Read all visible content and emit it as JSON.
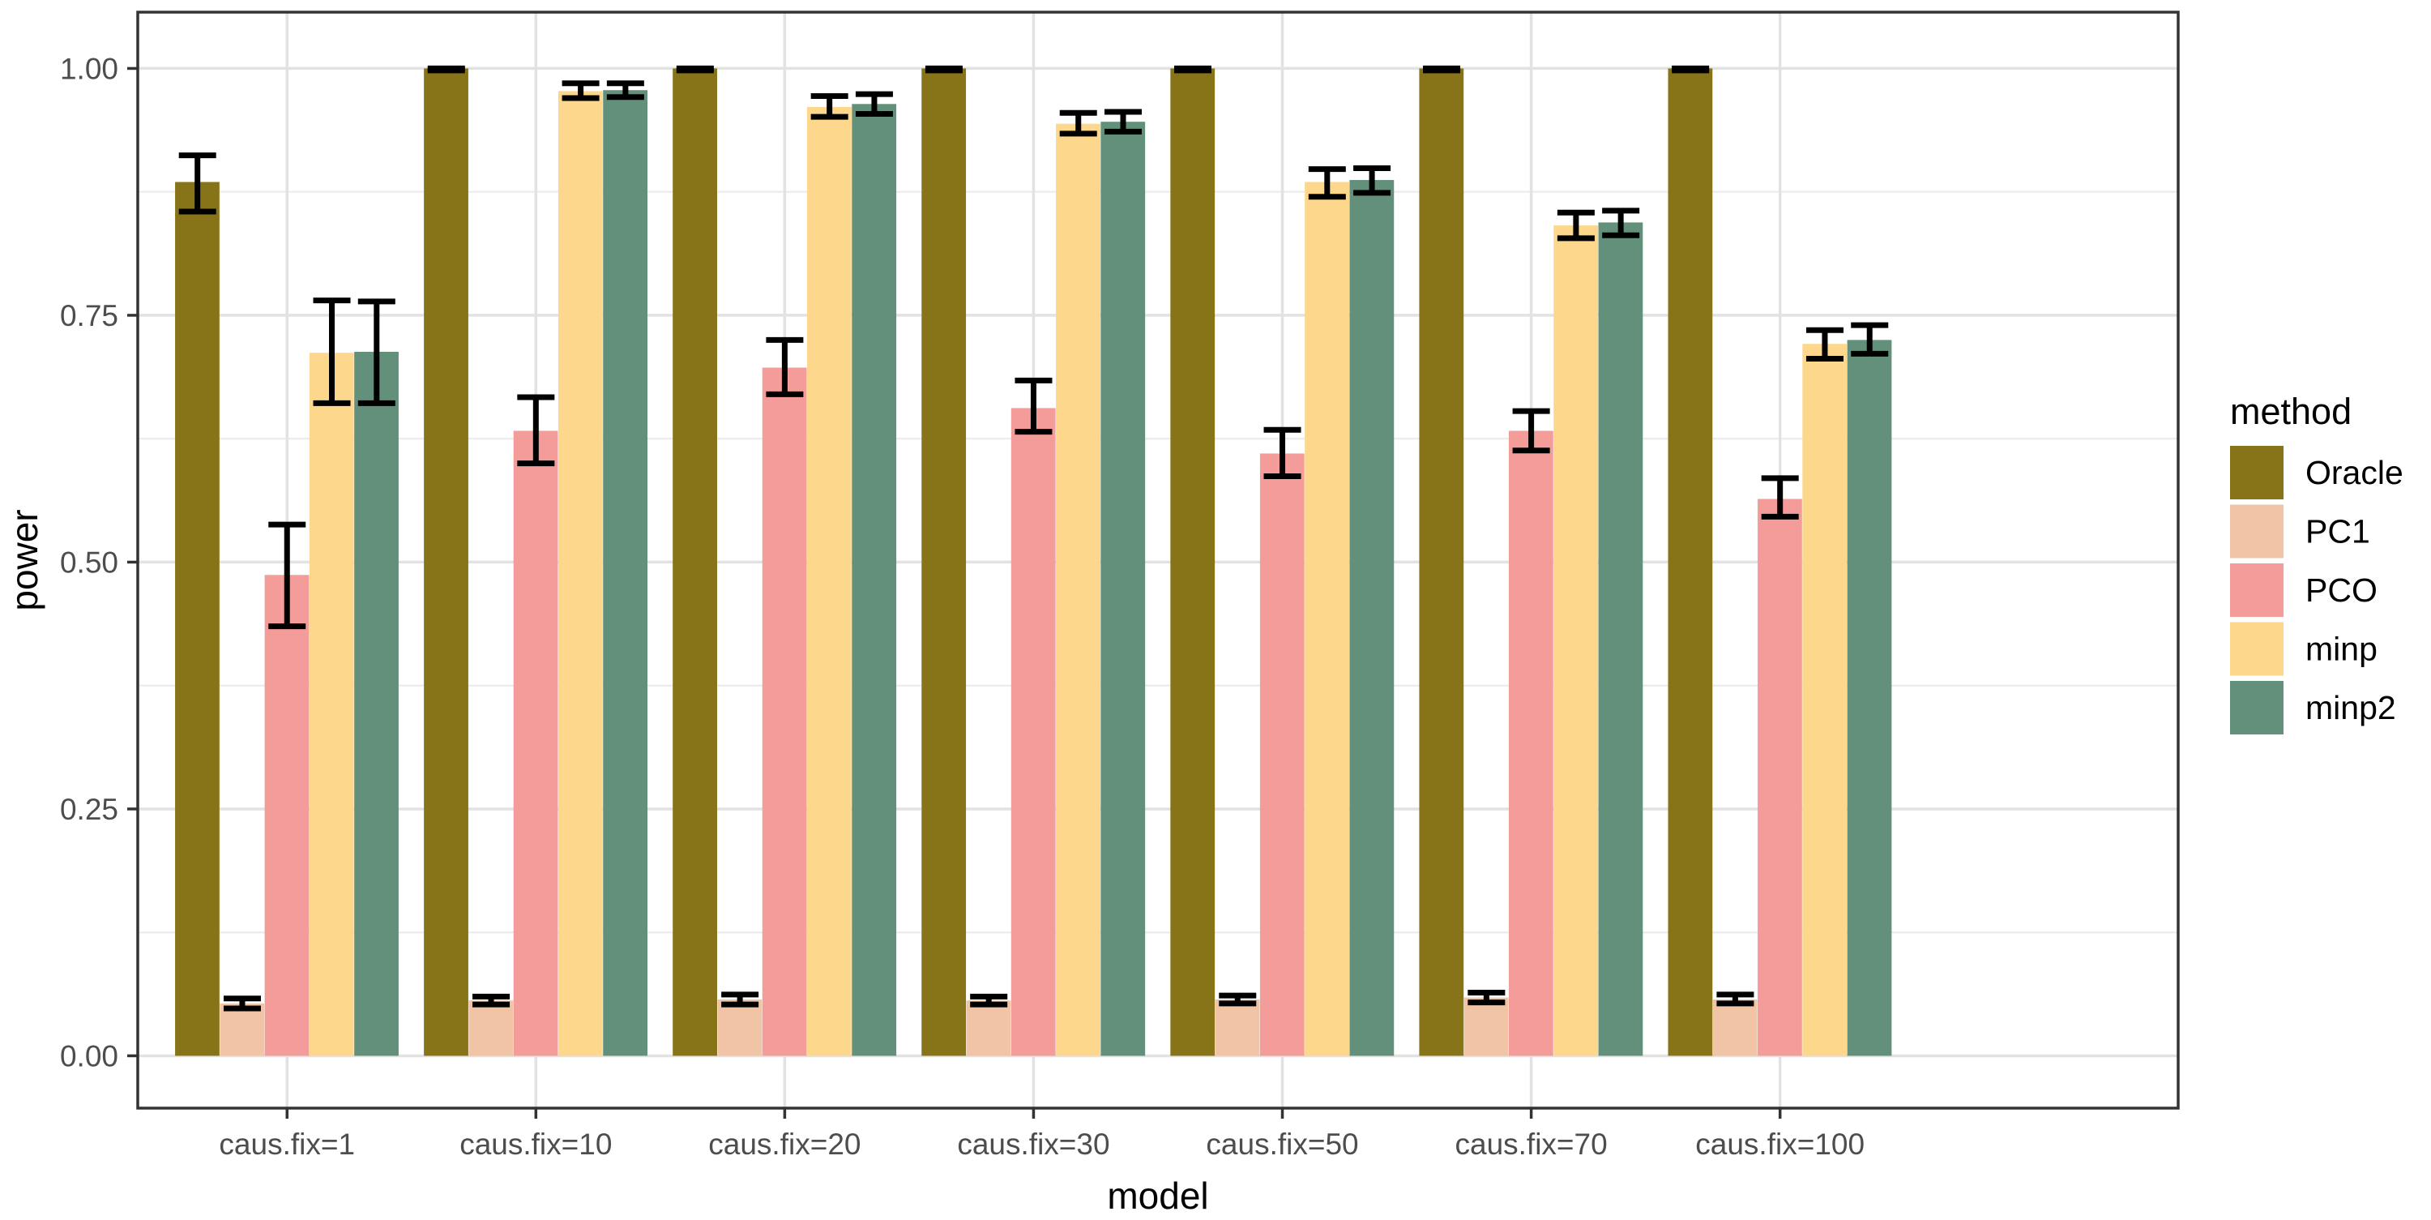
{
  "chart_data": {
    "type": "bar",
    "title": "",
    "xlabel": "model",
    "ylabel": "power",
    "legend_title": "method",
    "legend_position": "right",
    "grid": true,
    "bar_mode": "grouped-dodge",
    "error_bars": true,
    "ylim": [
      0,
      1.0
    ],
    "yticks": [
      {
        "value": 0.0,
        "label": "0.00"
      },
      {
        "value": 0.25,
        "label": "0.25"
      },
      {
        "value": 0.5,
        "label": "0.50"
      },
      {
        "value": 0.75,
        "label": "0.75"
      },
      {
        "value": 1.0,
        "label": "1.00"
      }
    ],
    "minor_yticks": [
      0.125,
      0.375,
      0.625,
      0.875
    ],
    "categories": [
      "caus.fix=1",
      "caus.fix=10",
      "caus.fix=20",
      "caus.fix=30",
      "caus.fix=50",
      "caus.fix=70",
      "caus.fix=100"
    ],
    "series": [
      {
        "name": "Oracle",
        "color": "#877418",
        "values": [
          0.885,
          1.0,
          1.0,
          1.0,
          1.0,
          1.0,
          1.0
        ],
        "err_low": [
          0.855,
          0.998,
          0.998,
          0.998,
          0.998,
          0.998,
          0.998
        ],
        "err_high": [
          0.912,
          1.0,
          1.0,
          1.0,
          1.0,
          1.0,
          1.0
        ]
      },
      {
        "name": "PC1",
        "color": "#f0c4a4",
        "values": [
          0.053,
          0.056,
          0.057,
          0.056,
          0.057,
          0.059,
          0.057
        ],
        "err_low": [
          0.048,
          0.052,
          0.052,
          0.052,
          0.053,
          0.054,
          0.053
        ],
        "err_high": [
          0.058,
          0.06,
          0.062,
          0.06,
          0.061,
          0.064,
          0.062
        ]
      },
      {
        "name": "PCO",
        "color": "#f49c9a",
        "values": [
          0.487,
          0.633,
          0.697,
          0.656,
          0.61,
          0.633,
          0.564
        ],
        "err_low": [
          0.435,
          0.6,
          0.67,
          0.632,
          0.587,
          0.613,
          0.546
        ],
        "err_high": [
          0.538,
          0.667,
          0.725,
          0.684,
          0.634,
          0.653,
          0.585
        ]
      },
      {
        "name": "minp",
        "color": "#fcd78c",
        "values": [
          0.712,
          0.977,
          0.961,
          0.944,
          0.885,
          0.841,
          0.721
        ],
        "err_low": [
          0.661,
          0.97,
          0.951,
          0.934,
          0.87,
          0.828,
          0.706
        ],
        "err_high": [
          0.765,
          0.985,
          0.972,
          0.955,
          0.898,
          0.854,
          0.735
        ]
      },
      {
        "name": "minp2",
        "color": "#63907a",
        "values": [
          0.713,
          0.978,
          0.964,
          0.946,
          0.887,
          0.844,
          0.725
        ],
        "err_low": [
          0.661,
          0.971,
          0.954,
          0.936,
          0.874,
          0.831,
          0.711
        ],
        "err_high": [
          0.764,
          0.985,
          0.974,
          0.956,
          0.899,
          0.856,
          0.74
        ]
      }
    ]
  },
  "colors": {
    "background": "#ffffff",
    "panel_background": "#ffffff",
    "panel_border": "#333333",
    "grid_major": "#e2e2e2",
    "grid_minor": "#ededed",
    "axis_tick": "#333333",
    "tick_label": "#4d4d4d",
    "axis_title": "#000000",
    "legend_text": "#000000",
    "error_bar": "#000000"
  }
}
